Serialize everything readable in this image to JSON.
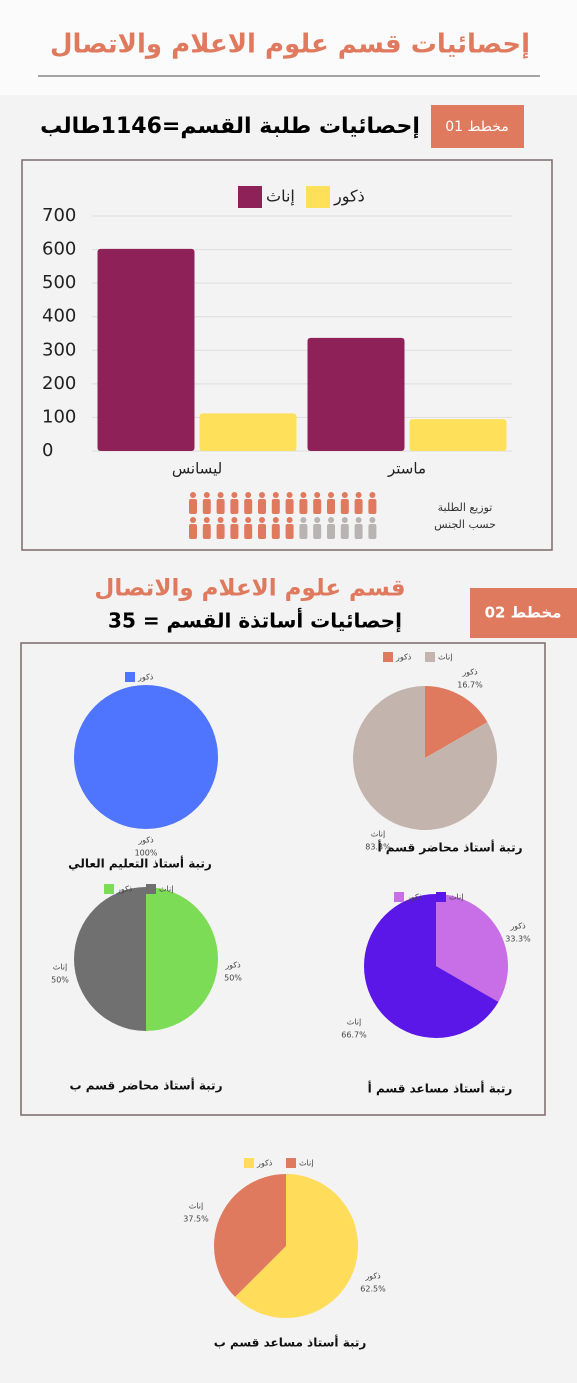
{
  "header": {
    "title": "إحصائيات قسم علوم الاعلام والاتصال"
  },
  "section1": {
    "badge": "مخطط 01",
    "title": "إحصائيات طلبة القسم=1146طالب",
    "caption": [
      "توزيع الطلبة",
      "حسب الجنس"
    ]
  },
  "section2": {
    "badge": "مخطط 02",
    "title": "قسم علوم الاعلام والاتصال",
    "subtitle": "إحصائيات أساتذة القسم = 35"
  },
  "chart_data": [
    {
      "type": "bar",
      "categories": [
        "ليسانس",
        "ماستر"
      ],
      "series": [
        {
          "name": "إناث",
          "color": "#8e2157",
          "values": [
            602,
            337
          ]
        },
        {
          "name": "ذكور",
          "color": "#ffe05a",
          "values": [
            112,
            95
          ]
        }
      ],
      "ylim": [
        0,
        700
      ],
      "yticks": [
        0,
        100,
        200,
        300,
        400,
        500,
        600,
        700
      ],
      "grid": true
    },
    {
      "type": "pie",
      "title": "رتبة أستاذ التعليم العالي",
      "categories": [
        "ذكور"
      ],
      "values": [
        100
      ],
      "value_labels": [
        "100%"
      ],
      "colors": [
        "#4f74fe"
      ]
    },
    {
      "type": "pie",
      "title": "رتبة أستاذ محاضر قسم أ",
      "categories": [
        "ذكور",
        "إناث"
      ],
      "values": [
        16.7,
        83.3
      ],
      "value_labels": [
        "16.7%",
        "83.3%"
      ],
      "colors": [
        "#e07a5f",
        "#c4b4ae"
      ]
    },
    {
      "type": "pie",
      "title": "رتبة أستاذ محاضر قسم ب",
      "categories": [
        "ذكور",
        "إناث"
      ],
      "values": [
        50,
        50
      ],
      "value_labels": [
        "50%",
        "50%"
      ],
      "colors": [
        "#7ddc56",
        "#707070"
      ]
    },
    {
      "type": "pie",
      "title": "رتبة أستاذ مساعد قسم أ",
      "categories": [
        "ذكور",
        "إناث"
      ],
      "values": [
        33.3,
        66.7
      ],
      "value_labels": [
        "33.3%",
        "66.7%"
      ],
      "colors": [
        "#c86ee6",
        "#5b17e8"
      ]
    },
    {
      "type": "pie",
      "title": "رتبة أستاذ مساعد قسم ب",
      "categories": [
        "ذكور",
        "إناث"
      ],
      "values": [
        62.5,
        37.5
      ],
      "value_labels": [
        "62.5%",
        "37.5%"
      ],
      "colors": [
        "#ffdc5a",
        "#e07a5f"
      ]
    }
  ]
}
